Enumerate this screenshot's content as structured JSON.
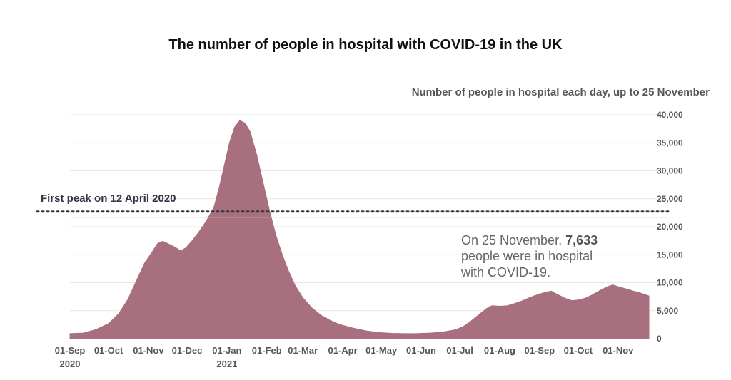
{
  "chart_data": {
    "type": "area",
    "title": "The number of people in hospital with COVID-19 in the UK",
    "subtitle": "Number of people in hospital each day, up to 25 November",
    "xlabel": "",
    "ylabel": "",
    "ylim": [
      0,
      40000
    ],
    "yticks": [
      0,
      5000,
      10000,
      15000,
      20000,
      25000,
      30000,
      35000,
      40000
    ],
    "ytick_labels": [
      "0",
      "5,000",
      "10,000",
      "15,000",
      "20,000",
      "25,000",
      "30,000",
      "35,000",
      "40,000"
    ],
    "xticks": [
      {
        "label": "01-Sep",
        "sub": "2020",
        "day": 0
      },
      {
        "label": "01-Oct",
        "sub": "",
        "day": 30
      },
      {
        "label": "01-Nov",
        "sub": "",
        "day": 61
      },
      {
        "label": "01-Dec",
        "sub": "",
        "day": 91
      },
      {
        "label": "01-Jan",
        "sub": "2021",
        "day": 122
      },
      {
        "label": "01-Feb",
        "sub": "",
        "day": 153
      },
      {
        "label": "01-Mar",
        "sub": "",
        "day": 181
      },
      {
        "label": "01-Apr",
        "sub": "",
        "day": 212
      },
      {
        "label": "01-May",
        "sub": "",
        "day": 242
      },
      {
        "label": "01-Jun",
        "sub": "",
        "day": 273
      },
      {
        "label": "01-Jul",
        "sub": "",
        "day": 303
      },
      {
        "label": "01-Aug",
        "sub": "",
        "day": 334
      },
      {
        "label": "01-Sep",
        "sub": "",
        "day": 365
      },
      {
        "label": "01-Oct",
        "sub": "",
        "day": 395
      },
      {
        "label": "01-Nov",
        "sub": "",
        "day": 426
      }
    ],
    "x_day_max": 450,
    "series": [
      {
        "name": "People in hospital",
        "color": "#a8707e",
        "points": [
          [
            0,
            900
          ],
          [
            10,
            1000
          ],
          [
            20,
            1600
          ],
          [
            30,
            2700
          ],
          [
            38,
            4500
          ],
          [
            45,
            7000
          ],
          [
            52,
            10500
          ],
          [
            58,
            13500
          ],
          [
            64,
            15500
          ],
          [
            68,
            17000
          ],
          [
            72,
            17400
          ],
          [
            76,
            17000
          ],
          [
            82,
            16300
          ],
          [
            86,
            15700
          ],
          [
            90,
            16200
          ],
          [
            95,
            17500
          ],
          [
            100,
            19000
          ],
          [
            106,
            21000
          ],
          [
            112,
            23500
          ],
          [
            116,
            27000
          ],
          [
            120,
            31000
          ],
          [
            124,
            35000
          ],
          [
            128,
            37800
          ],
          [
            132,
            39000
          ],
          [
            136,
            38500
          ],
          [
            140,
            37000
          ],
          [
            145,
            33000
          ],
          [
            150,
            28000
          ],
          [
            155,
            23000
          ],
          [
            160,
            18500
          ],
          [
            165,
            15000
          ],
          [
            170,
            12000
          ],
          [
            175,
            9500
          ],
          [
            181,
            7300
          ],
          [
            188,
            5500
          ],
          [
            195,
            4200
          ],
          [
            202,
            3300
          ],
          [
            210,
            2500
          ],
          [
            220,
            1900
          ],
          [
            230,
            1400
          ],
          [
            240,
            1100
          ],
          [
            250,
            950
          ],
          [
            260,
            900
          ],
          [
            270,
            920
          ],
          [
            280,
            1000
          ],
          [
            290,
            1200
          ],
          [
            300,
            1600
          ],
          [
            306,
            2200
          ],
          [
            312,
            3200
          ],
          [
            318,
            4300
          ],
          [
            324,
            5400
          ],
          [
            328,
            5900
          ],
          [
            334,
            5800
          ],
          [
            340,
            5900
          ],
          [
            346,
            6300
          ],
          [
            352,
            6800
          ],
          [
            358,
            7400
          ],
          [
            364,
            7900
          ],
          [
            370,
            8300
          ],
          [
            374,
            8500
          ],
          [
            378,
            8000
          ],
          [
            385,
            7200
          ],
          [
            390,
            6800
          ],
          [
            395,
            6900
          ],
          [
            400,
            7200
          ],
          [
            405,
            7700
          ],
          [
            412,
            8600
          ],
          [
            418,
            9300
          ],
          [
            422,
            9600
          ],
          [
            426,
            9300
          ],
          [
            432,
            8900
          ],
          [
            438,
            8500
          ],
          [
            444,
            8100
          ],
          [
            450,
            7633
          ]
        ]
      }
    ],
    "reference_line": {
      "value": 22700,
      "label": "First peak on 12 April 2020",
      "style": "dotted",
      "color": "#333344"
    },
    "annotation": {
      "text_before": "On 25 November, ",
      "value": "7,633",
      "line2": "people were in hospital",
      "line3": "with COVID-19."
    },
    "grid": true,
    "gridline_color": "#e6e6e6",
    "text_color": "#555555"
  }
}
